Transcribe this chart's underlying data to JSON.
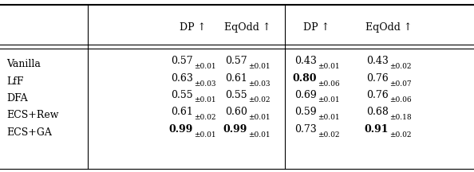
{
  "col_headers": [
    "",
    "DP ↑",
    "EqOdd ↑",
    "DP ↑",
    "EqOdd ↑"
  ],
  "rows": [
    {
      "method": "Vanilla",
      "vals": [
        {
          "val": "0.57",
          "std": "±0.01",
          "bold": false
        },
        {
          "val": "0.57",
          "std": "±0.01",
          "bold": false
        },
        {
          "val": "0.43",
          "std": "±0.01",
          "bold": false
        },
        {
          "val": "0.43",
          "std": "±0.02",
          "bold": false
        }
      ]
    },
    {
      "method": "LfF",
      "vals": [
        {
          "val": "0.63",
          "std": "±0.03",
          "bold": false
        },
        {
          "val": "0.61",
          "std": "±0.03",
          "bold": false
        },
        {
          "val": "0.80",
          "std": "±0.06",
          "bold": true
        },
        {
          "val": "0.76",
          "std": "±0.07",
          "bold": false
        }
      ]
    },
    {
      "method": "DFA",
      "vals": [
        {
          "val": "0.55",
          "std": "±0.01",
          "bold": false
        },
        {
          "val": "0.55",
          "std": "±0.02",
          "bold": false
        },
        {
          "val": "0.69",
          "std": "±0.01",
          "bold": false
        },
        {
          "val": "0.76",
          "std": "±0.06",
          "bold": false
        }
      ]
    },
    {
      "method": "ECS+Rew",
      "vals": [
        {
          "val": "0.61",
          "std": "±0.02",
          "bold": false
        },
        {
          "val": "0.60",
          "std": "±0.01",
          "bold": false
        },
        {
          "val": "0.59",
          "std": "±0.01",
          "bold": false
        },
        {
          "val": "0.68",
          "std": "±0.18",
          "bold": false
        }
      ]
    },
    {
      "method": "ECS+GA",
      "vals": [
        {
          "val": "0.99",
          "std": "±0.01",
          "bold": true
        },
        {
          "val": "0.99",
          "std": "±0.01",
          "bold": true
        },
        {
          "val": "0.73",
          "std": "±0.02",
          "bold": false
        },
        {
          "val": "0.91",
          "std": "±0.02",
          "bold": true
        }
      ]
    }
  ],
  "background_color": "#ffffff",
  "text_color": "#000000",
  "font_size_main": 9.0,
  "font_size_std": 6.5,
  "font_size_header": 9.0
}
